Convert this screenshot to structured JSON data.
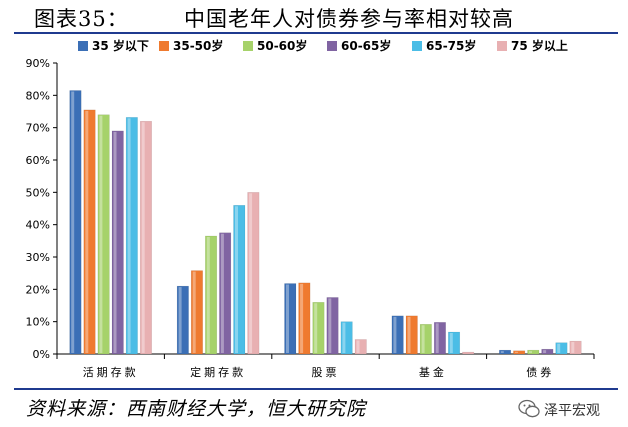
{
  "figure": {
    "label": "图表35：",
    "title": "中国老年人对债券参与率相对较高",
    "source": "资料来源：西南财经大学，恒大研究院",
    "watermark": "泽平宏观",
    "watermark_icon": "wechat-icon"
  },
  "chart_data": {
    "type": "bar",
    "categories": [
      "活期存款",
      "定期存款",
      "股票",
      "基金",
      "债券"
    ],
    "series": [
      {
        "name": "35 岁以下",
        "color": "#3b6fb6",
        "values": [
          81.5,
          21.0,
          21.8,
          11.8,
          1.2
        ]
      },
      {
        "name": "35-50岁",
        "color": "#ef7a2f",
        "values": [
          75.5,
          25.8,
          22.0,
          11.8,
          1.0
        ]
      },
      {
        "name": "50-60岁",
        "color": "#a6d26a",
        "values": [
          74.0,
          36.5,
          16.0,
          9.2,
          1.2
        ]
      },
      {
        "name": "60-65岁",
        "color": "#8064a2",
        "values": [
          69.0,
          37.5,
          17.5,
          9.8,
          1.5
        ]
      },
      {
        "name": "65-75岁",
        "color": "#4bbde6",
        "values": [
          73.2,
          46.0,
          10.0,
          6.8,
          3.5
        ]
      },
      {
        "name": "75 岁以上",
        "color": "#e8b0b2",
        "values": [
          72.0,
          50.0,
          4.5,
          0.6,
          4.0
        ]
      }
    ],
    "yticks": [
      "0%",
      "10%",
      "20%",
      "30%",
      "40%",
      "50%",
      "60%",
      "70%",
      "80%",
      "90%"
    ],
    "ylim": [
      0,
      90
    ],
    "grid": false,
    "legend": "top"
  }
}
